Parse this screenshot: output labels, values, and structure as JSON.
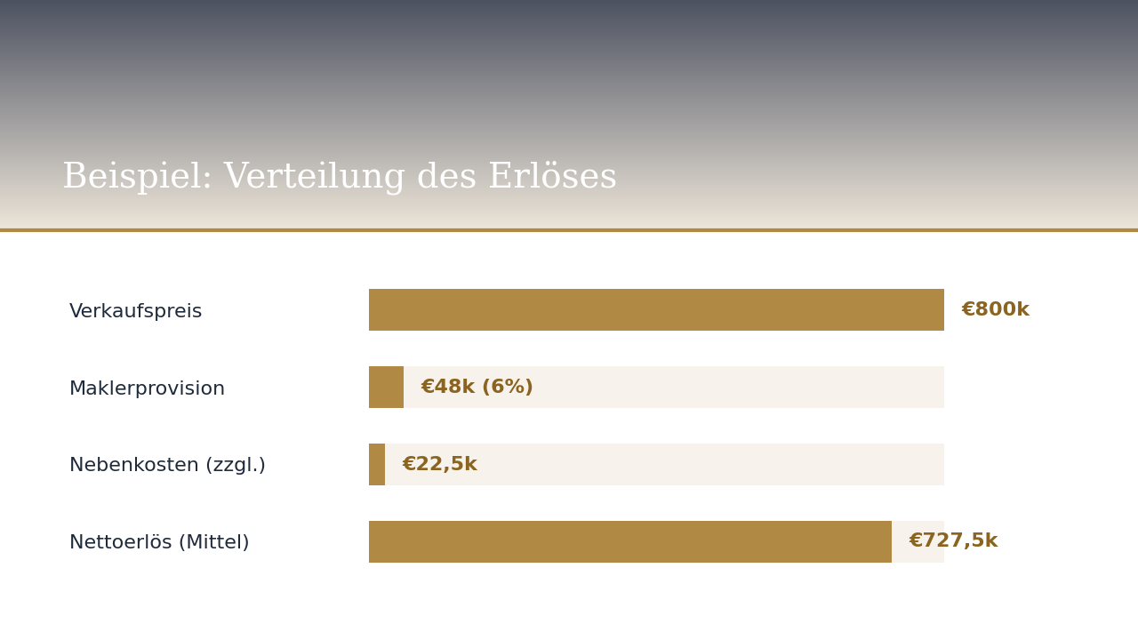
{
  "chart_data": {
    "type": "bar",
    "orientation": "horizontal",
    "title": "Beispiel: Verteilung des Erlöses",
    "categories": [
      "Verkaufspreis",
      "Maklerprovision",
      "Nebenkosten (zzgl.)",
      "Nettoerlös (Mittel)"
    ],
    "values": [
      800,
      48,
      22.5,
      727.5
    ],
    "value_labels": [
      "€800k",
      "€48k (6%)",
      "€22,5k",
      "€727,5k"
    ],
    "xlim": [
      0,
      800
    ],
    "xticks": [],
    "tick_labels": "y",
    "data_labels": true,
    "color": "#b08a45",
    "grid": false
  }
}
